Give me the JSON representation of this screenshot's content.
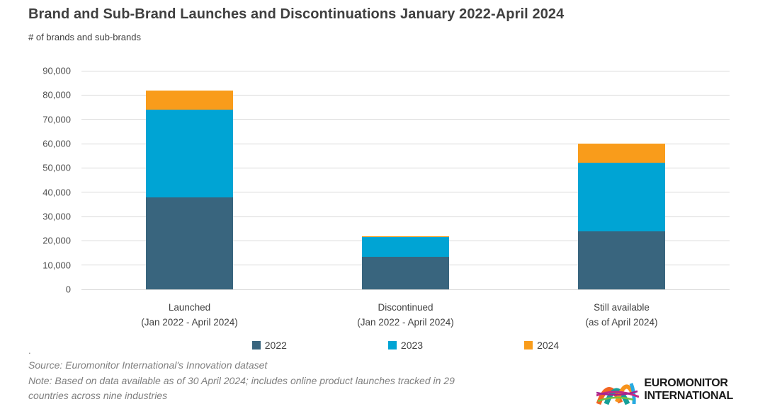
{
  "chart_data": {
    "type": "bar",
    "stacked": true,
    "title": "Brand and Sub-Brand Launches and Discontinuations January 2022-April 2024",
    "subtitle": "# of brands and sub-brands",
    "categories": [
      {
        "label": "Launched",
        "sublabel": "(Jan 2022 - April 2024)"
      },
      {
        "label": "Discontinued",
        "sublabel": "(Jan 2022 - April 2024)"
      },
      {
        "label": "Still available",
        "sublabel": "(as of April 2024)"
      }
    ],
    "series": [
      {
        "name": "2022",
        "color": "#39657E",
        "values": [
          38000,
          13500,
          24000
        ]
      },
      {
        "name": "2023",
        "color": "#00A4D4",
        "values": [
          36000,
          8200,
          28200
        ]
      },
      {
        "name": "2024",
        "color": "#F99C1B",
        "values": [
          8000,
          300,
          7800
        ]
      }
    ],
    "stack_totals": [
      82000,
      22000,
      60000
    ],
    "ylim": [
      0,
      90000
    ],
    "ytick_step": 10000,
    "ytick_labels": [
      "0",
      "10,000",
      "20,000",
      "30,000",
      "40,000",
      "50,000",
      "60,000",
      "70,000",
      "80,000",
      "90,000"
    ],
    "grid": true,
    "grid_color": "#D9D9D9",
    "legend_position": "bottom"
  },
  "footer": {
    "dot": ".",
    "source": "Source: Euromonitor International's Innovation dataset",
    "note_lines": [
      "Note: Based on data available as of 30 April 2024; includes online product launches tracked in 29",
      "countries across nine industries"
    ]
  },
  "logo": {
    "line1": "EUROMONITOR",
    "line2": "INTERNATIONAL",
    "arc_colors": [
      "#F26522",
      "#16A099",
      "#F7941D",
      "#27AAE1",
      "#C22A86",
      "#A3238E",
      "#72BF44"
    ]
  }
}
